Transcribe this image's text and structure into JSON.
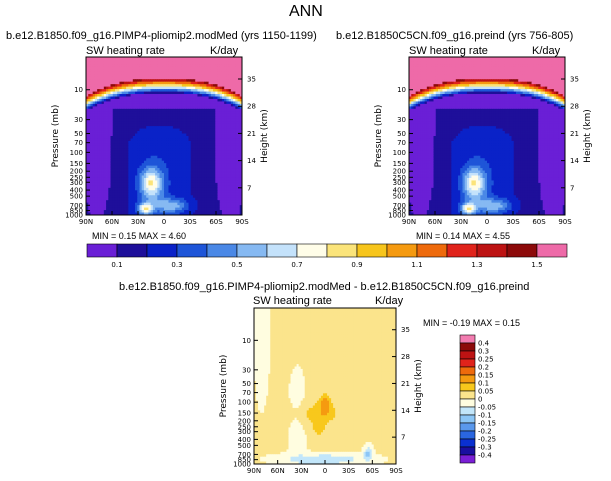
{
  "page": {
    "title": "ANN"
  },
  "palette": {
    "seq": [
      "#6a1fd6",
      "#1e0f9a",
      "#0a22c8",
      "#1e55d8",
      "#4a88e6",
      "#86b9f2",
      "#c4e2fb",
      "#fffde8",
      "#fbe47a",
      "#f7c51c",
      "#f59a10",
      "#ee6a0c",
      "#e0231b",
      "#bd1313",
      "#8c0a0a",
      "#ee6aa8"
    ],
    "seq_labels": [
      "0.1",
      "0.3",
      "0.5",
      "0.7",
      "0.9",
      "1.1",
      "1.3",
      "1.5"
    ],
    "div": [
      "#7a1fd6",
      "#1a0fa0",
      "#0a30d0",
      "#2a66e0",
      "#5a98ec",
      "#8cc6f6",
      "#c2e6fa",
      "#fffde0",
      "#fbe48c",
      "#f8c81c",
      "#f59a10",
      "#ee6a0c",
      "#e0231b",
      "#bd1313",
      "#8c0a0a",
      "#f27cb0"
    ],
    "div_labels": [
      "-0.4",
      "-0.3",
      "-0.25",
      "-0.2",
      "-0.15",
      "-0.1",
      "-0.05",
      "0",
      "0.05",
      "0.1",
      "0.15",
      "0.2",
      "0.25",
      "0.3",
      "0.4"
    ]
  },
  "chart_data": [
    {
      "type": "heatmap",
      "title": "b.e12.B1850.f09_g16.PIMP4-pliomip2.modMed (yrs 1150-1199)",
      "field_label": "SW heating rate",
      "units": "K/day",
      "min_max": "MIN =    0.15    MAX =      4.60",
      "ylabel": "Pressure (mb)",
      "ylabel_right": "Height (km)",
      "x_ticks": [
        "90N",
        "60N",
        "30N",
        "0",
        "30S",
        "60S",
        "90S"
      ],
      "y_ticks": [
        "10",
        "30",
        "50",
        "70",
        "100",
        "150",
        "200",
        "250",
        "300",
        "400",
        "500",
        "700",
        "850",
        "1000"
      ],
      "height_ticks": [
        "35",
        "28",
        "21",
        "14",
        "7"
      ],
      "ylim": [
        1000,
        3
      ],
      "xlim": [
        90,
        -90
      ]
    },
    {
      "type": "heatmap",
      "title": "b.e12.B1850C5CN.f09_g16.preind (yrs 756-805)",
      "field_label": "SW heating rate",
      "units": "K/day",
      "min_max": "MIN =    0.14    MAX =      4.55",
      "ylabel": "Pressure (mb)",
      "ylabel_right": "Height (km)",
      "x_ticks": [
        "90N",
        "60N",
        "30N",
        "0",
        "30S",
        "60S",
        "90S"
      ],
      "y_ticks": [
        "10",
        "30",
        "50",
        "70",
        "100",
        "150",
        "200",
        "250",
        "300",
        "400",
        "500",
        "700",
        "850",
        "1000"
      ],
      "height_ticks": [
        "35",
        "28",
        "21",
        "14",
        "7"
      ],
      "ylim": [
        1000,
        3
      ],
      "xlim": [
        90,
        -90
      ]
    },
    {
      "type": "heatmap",
      "title": "b.e12.B1850.f09_g16.PIMP4-pliomip2.modMed  -  b.e12.B1850C5CN.f09_g16.preind",
      "field_label": "SW heating rate",
      "units": "K/day",
      "min_max": "MIN =   -0.19    MAX =     0.15",
      "ylabel": "Pressure (mb)",
      "ylabel_right": "Height (km)",
      "x_ticks": [
        "90N",
        "60N",
        "30N",
        "0",
        "30S",
        "60S",
        "90S"
      ],
      "y_ticks": [
        "10",
        "30",
        "50",
        "70",
        "100",
        "150",
        "200",
        "250",
        "300",
        "400",
        "500",
        "700",
        "850",
        "1000"
      ],
      "height_ticks": [
        "35",
        "28",
        "21",
        "14",
        "7"
      ],
      "ylim": [
        1000,
        3
      ],
      "xlim": [
        90,
        -90
      ]
    }
  ]
}
